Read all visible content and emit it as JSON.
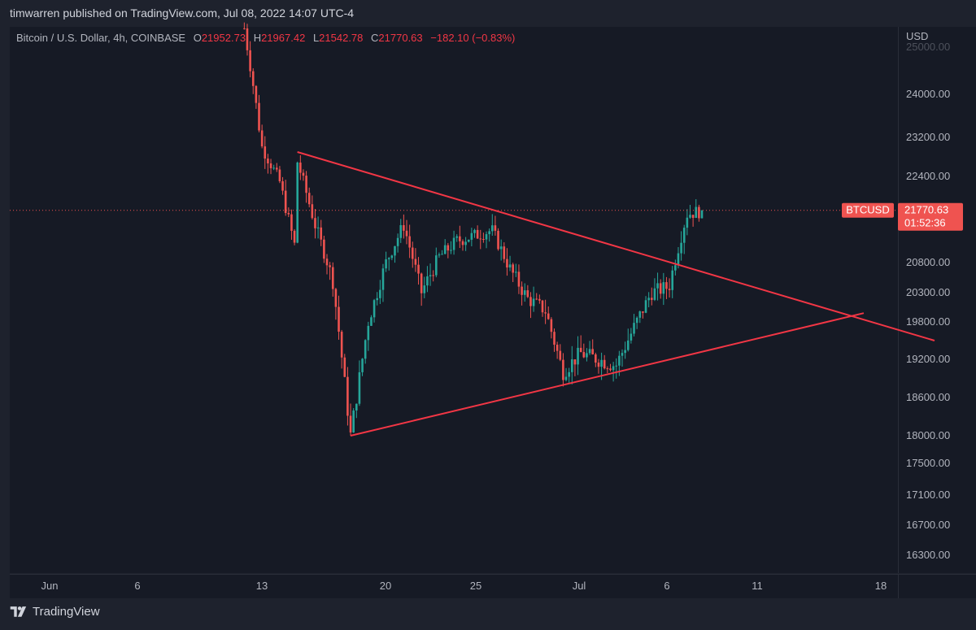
{
  "publish_line": "timwarren published on TradingView.com, Jul 08, 2022 14:07 UTC-4",
  "legend": {
    "symbol": "Bitcoin / U.S. Dollar, 4h, COINBASE",
    "open_key": "O",
    "open": "21952.73",
    "high_key": "H",
    "high": "21967.42",
    "low_key": "L",
    "low": "21542.78",
    "close_key": "C",
    "close": "21770.63",
    "change": "−182.10 (−0.83%)"
  },
  "currency": "USD",
  "footer_brand": "TradingView",
  "price_label": {
    "symbol": "BTCUSD",
    "price": "21770.63",
    "countdown": "01:52:36"
  },
  "colors": {
    "up": "#26a69a",
    "down": "#ef5350",
    "trendline": "#f23645",
    "background": "#161a25"
  },
  "chart_data": {
    "type": "candlestick",
    "symbol": "BTCUSD",
    "interval": "4h",
    "x_ticks": [
      "Jun",
      "6",
      "13",
      "20",
      "25",
      "Jul",
      "6",
      "11",
      "18"
    ],
    "y_ticks": [
      "16300.00",
      "16700.00",
      "17100.00",
      "17500.00",
      "18000.00",
      "18600.00",
      "19200.00",
      "19800.00",
      "20300.00",
      "20800.00",
      "22400.00",
      "23200.00",
      "24000.00",
      "25000.00"
    ],
    "last_price": 21770.63,
    "series": [
      {
        "name": "close",
        "x_start": "Jun 12",
        "x_end": "Jul 8",
        "key_points": [
          {
            "x": "Jun 12",
            "y": 25400
          },
          {
            "x": "Jun 13",
            "y": 23000
          },
          {
            "x": "Jun 14",
            "y": 22300
          },
          {
            "x": "Jun 15",
            "y": 20900
          },
          {
            "x": "Jun 15",
            "y": 22700
          },
          {
            "x": "Jun 16",
            "y": 21500
          },
          {
            "x": "Jun 17",
            "y": 20500
          },
          {
            "x": "Jun 18",
            "y": 18000
          },
          {
            "x": "Jun 19",
            "y": 19800
          },
          {
            "x": "Jun 20",
            "y": 20800
          },
          {
            "x": "Jun 21",
            "y": 21500
          },
          {
            "x": "Jun 22",
            "y": 20300
          },
          {
            "x": "Jun 23",
            "y": 20900
          },
          {
            "x": "Jun 24",
            "y": 21200
          },
          {
            "x": "Jun 26",
            "y": 21400
          },
          {
            "x": "Jun 27",
            "y": 20700
          },
          {
            "x": "Jun 28",
            "y": 20200
          },
          {
            "x": "Jun 29",
            "y": 20000
          },
          {
            "x": "Jun 30",
            "y": 19000
          },
          {
            "x": "Jul 1",
            "y": 19300
          },
          {
            "x": "Jul 2",
            "y": 19200
          },
          {
            "x": "Jul 3",
            "y": 19100
          },
          {
            "x": "Jul 4",
            "y": 19700
          },
          {
            "x": "Jul 5",
            "y": 20300
          },
          {
            "x": "Jul 6",
            "y": 20400
          },
          {
            "x": "Jul 7",
            "y": 21700
          },
          {
            "x": "Jul 8",
            "y": 21770.63
          }
        ]
      }
    ],
    "trendlines": [
      {
        "name": "upper",
        "from": {
          "x": "Jun 15",
          "y": 22900
        },
        "to": {
          "x": "Jul 21",
          "y": 19500
        }
      },
      {
        "name": "lower",
        "from": {
          "x": "Jun 18",
          "y": 18000
        },
        "to": {
          "x": "Jul 17",
          "y": 19950
        }
      }
    ]
  }
}
